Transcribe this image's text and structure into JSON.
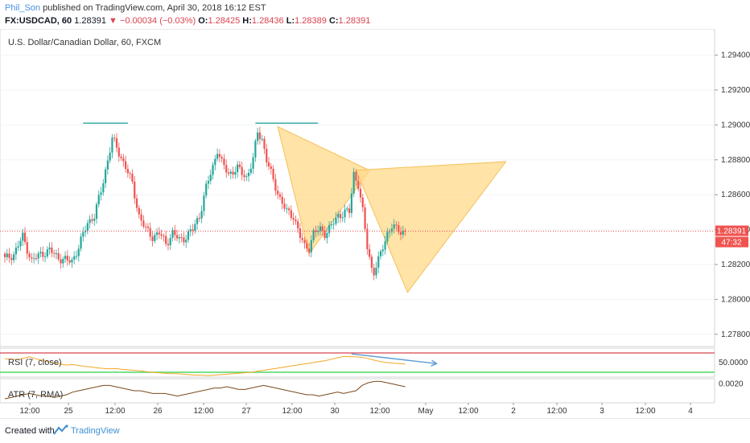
{
  "header": {
    "user": "Phil_Son",
    "published": "published on TradingView.com, April 30, 2018 16:12 EST",
    "symbol": "FX:USDCAD, 60",
    "last": "1.28391",
    "change": "▼ −0.00034 (−0.03%)",
    "o_label": "O:",
    "o_value": "1.28425",
    "h_label": "H:",
    "h_value": "1.28436",
    "l_label": "L:",
    "l_value": "1.28389",
    "c_label": "C:",
    "c_value": "1.28391"
  },
  "footer": {
    "created_with": "Created with",
    "brand": "TradingView"
  },
  "colors": {
    "up": "#26a69a",
    "down": "#ef5350",
    "pattern_fill": "#ffd98a",
    "pattern_stroke": "#f5c15a",
    "rsi_line": "#f5a623",
    "atr_line": "#7a4a1b",
    "rsi_upper": "#d94451",
    "rsi_lower": "#4cd964",
    "divergence": "#5b9bd5",
    "price_tag": "#ef5350"
  },
  "chart_data": [
    {
      "type": "candlestick",
      "title": "U.S. Dollar/Canadian Dollar, 60, FXCM",
      "y_ticks": [
        "1.29400",
        "1.29200",
        "1.29000",
        "1.28800",
        "1.28600",
        "1.28400",
        "1.28200",
        "1.28000",
        "1.27800"
      ],
      "ylim": [
        1.2773,
        1.2955
      ],
      "x_ticks": [
        "12:00",
        "25",
        "12:00",
        "26",
        "12:00",
        "27",
        "12:00",
        "30",
        "12:00",
        "May",
        "12:00",
        "2",
        "12:00",
        "3",
        "12:00",
        "4"
      ],
      "price_label": "1.28391",
      "countdown_label": "47:32",
      "last_price": 1.28391,
      "close_path": [
        [
          0,
          1.2823
        ],
        [
          4,
          1.2826
        ],
        [
          8,
          1.2836
        ],
        [
          12,
          1.2822
        ],
        [
          16,
          1.2826
        ],
        [
          20,
          1.2828
        ],
        [
          24,
          1.2824
        ],
        [
          28,
          1.2822
        ],
        [
          30,
          1.2822
        ],
        [
          33,
          1.283
        ],
        [
          37,
          1.2844
        ],
        [
          40,
          1.2848
        ],
        [
          43,
          1.2862
        ],
        [
          46,
          1.288
        ],
        [
          48,
          1.2892
        ],
        [
          51,
          1.2884
        ],
        [
          54,
          1.2876
        ],
        [
          57,
          1.2866
        ],
        [
          60,
          1.2848
        ],
        [
          63,
          1.284
        ],
        [
          66,
          1.2836
        ],
        [
          69,
          1.2838
        ],
        [
          72,
          1.2832
        ],
        [
          75,
          1.2838
        ],
        [
          78,
          1.2834
        ],
        [
          81,
          1.2836
        ],
        [
          84,
          1.284
        ],
        [
          87,
          1.2848
        ],
        [
          90,
          1.2864
        ],
        [
          93,
          1.2876
        ],
        [
          95,
          1.2886
        ],
        [
          97,
          1.2878
        ],
        [
          100,
          1.2872
        ],
        [
          104,
          1.2875
        ],
        [
          108,
          1.287
        ],
        [
          111,
          1.288
        ],
        [
          113,
          1.2896
        ],
        [
          115,
          1.2892
        ],
        [
          117,
          1.288
        ],
        [
          120,
          1.2868
        ],
        [
          123,
          1.2858
        ],
        [
          126,
          1.285
        ],
        [
          129,
          1.2848
        ],
        [
          132,
          1.2836
        ],
        [
          134,
          1.283
        ],
        [
          136,
          1.283
        ],
        [
          138,
          1.2838
        ],
        [
          141,
          1.284
        ],
        [
          143,
          1.2838
        ],
        [
          146,
          1.2842
        ],
        [
          149,
          1.2848
        ],
        [
          152,
          1.285
        ],
        [
          154,
          1.285
        ],
        [
          156,
          1.2872
        ],
        [
          158,
          1.2866
        ],
        [
          160,
          1.285
        ],
        [
          162,
          1.283
        ],
        [
          164,
          1.2818
        ],
        [
          165,
          1.2816
        ],
        [
          167,
          1.2822
        ],
        [
          169,
          1.283
        ],
        [
          171,
          1.2838
        ],
        [
          173,
          1.2842
        ],
        [
          175,
          1.284
        ],
        [
          177,
          1.2839
        ],
        [
          179,
          1.2839
        ]
      ],
      "pattern": {
        "X": [
          122,
          1.2899
        ],
        "A": [
          163,
          1.2874
        ],
        "B": [
          157,
          1.2874
        ],
        "C": [
          224,
          1.2879
        ],
        "D": [
          180,
          1.2804
        ]
      },
      "resistance_lines": [
        {
          "x1": 35,
          "x2": 55,
          "y": 1.2901
        },
        {
          "x1": 112,
          "x2": 140,
          "y": 1.2901
        }
      ]
    },
    {
      "type": "line",
      "title": "RSI (7, close)",
      "y_ticks": [
        "50.0000"
      ],
      "upper_band": 70,
      "lower_band": 30,
      "ylim": [
        20,
        80
      ],
      "values": [
        58,
        57,
        56,
        59,
        62,
        58,
        55,
        52,
        49,
        47,
        45,
        46,
        44,
        42,
        41,
        39,
        38,
        37,
        38,
        36,
        35,
        34,
        33,
        31,
        30,
        29,
        28,
        27,
        27,
        26,
        25,
        24,
        24,
        23,
        24,
        25,
        26,
        27,
        28,
        29,
        30,
        32,
        34,
        36,
        38,
        40,
        42,
        44,
        46,
        48,
        50,
        52,
        54,
        57,
        60,
        63,
        62,
        62,
        61,
        58,
        55,
        52,
        50,
        49,
        48,
        47
      ],
      "divergence_line": [
        [
          155,
          68
        ],
        [
          193,
          48
        ]
      ]
    },
    {
      "type": "line",
      "title": "ATR (7, RMA)",
      "y_ticks": [
        "0.0020"
      ],
      "ylim": [
        0.0006,
        0.0024
      ],
      "values": [
        0.0009,
        0.001,
        0.0011,
        0.0012,
        0.0013,
        0.0012,
        0.0011,
        0.0011,
        0.001,
        0.0011,
        0.0012,
        0.0014,
        0.0015,
        0.0016,
        0.0017,
        0.0018,
        0.0019,
        0.0019,
        0.0018,
        0.0017,
        0.0016,
        0.0015,
        0.0015,
        0.0014,
        0.0013,
        0.0013,
        0.0013,
        0.0012,
        0.0011,
        0.0012,
        0.0013,
        0.0014,
        0.0015,
        0.0016,
        0.0017,
        0.0017,
        0.0018,
        0.0017,
        0.0016,
        0.0016,
        0.0017,
        0.0018,
        0.0019,
        0.0018,
        0.0017,
        0.0016,
        0.0015,
        0.0014,
        0.0013,
        0.0012,
        0.0012,
        0.0011,
        0.0012,
        0.0013,
        0.0014,
        0.0013,
        0.0014,
        0.0015,
        0.0019,
        0.0021,
        0.0022,
        0.0022,
        0.0021,
        0.002,
        0.0019,
        0.0018
      ]
    }
  ]
}
